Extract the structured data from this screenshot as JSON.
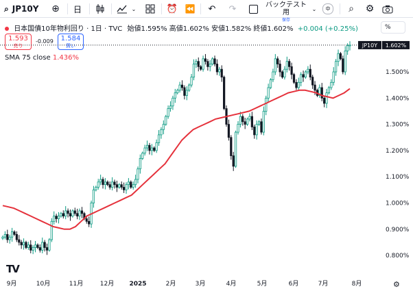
{
  "toolbar": {
    "symbol": "JP10Y",
    "add_icon": "plus-circle-icon",
    "interval": "日",
    "candle_icon": "candlestick-icon",
    "indicator_icon": "indicators-icon",
    "layout_icon": "grid-icon",
    "alert_icon": "alarm-icon",
    "replay_icon": "rewind-icon",
    "undo_icon": "undo-icon",
    "redo_icon": "redo-icon",
    "backtest_label": "バックテスト用",
    "backtest_sub": "保存",
    "mid_label": "中",
    "search_icon": "search-icon",
    "settings_icon": "gear-icon",
    "camera_icon": "camera-icon"
  },
  "legend": {
    "title": "日本国債10年物利回り · 1日 · TVC",
    "ohlc": "始値1.595% 高値1.602% 安値1.582% 終値1.602%",
    "change": "+0.004 (+0.25%)"
  },
  "pct_button": "%",
  "trade": {
    "sell_price": "1.593",
    "sell_label": "売り",
    "spread": "-0.009",
    "buy_price": "1.584",
    "buy_label": "買い"
  },
  "sma": {
    "label": "SMA 75 close",
    "value": "1.436%"
  },
  "chart_data": {
    "type": "candlestick",
    "y_axis_ticks": [
      "1.500%",
      "1.400%",
      "1.300%",
      "1.200%",
      "1.100%",
      "1.000%",
      "0.900%",
      "0.800%"
    ],
    "x_axis_ticks": [
      "9月",
      "10月",
      "11月",
      "12月",
      "2025",
      "2月",
      "3月",
      "4月",
      "5月",
      "6月",
      "7月",
      "8月"
    ],
    "ylim": [
      0.775,
      1.66
    ],
    "last_price_label": "JP10Y",
    "last_price": "1.602%",
    "colors": {
      "up": "#089981",
      "down": "#131722",
      "sma": "#e5313b"
    },
    "close_series": [
      0.87,
      0.88,
      0.86,
      0.87,
      0.89,
      0.88,
      0.86,
      0.85,
      0.84,
      0.85,
      0.83,
      0.84,
      0.82,
      0.83,
      0.84,
      0.83,
      0.82,
      0.85,
      0.83,
      0.82,
      0.86,
      0.93,
      0.95,
      0.94,
      0.95,
      0.96,
      0.95,
      0.97,
      0.96,
      0.95,
      0.97,
      0.96,
      0.95,
      0.97,
      0.96,
      0.94,
      0.93,
      0.92,
      1.0,
      1.05,
      1.06,
      1.08,
      1.09,
      1.07,
      1.08,
      1.07,
      1.06,
      1.08,
      1.07,
      1.06,
      1.07,
      1.06,
      1.05,
      1.07,
      1.08,
      1.06,
      1.07,
      1.09,
      1.13,
      1.17,
      1.19,
      1.21,
      1.22,
      1.2,
      1.21,
      1.2,
      1.23,
      1.26,
      1.28,
      1.3,
      1.33,
      1.36,
      1.37,
      1.4,
      1.42,
      1.43,
      1.45,
      1.44,
      1.41,
      1.43,
      1.45,
      1.48,
      1.53,
      1.54,
      1.52,
      1.51,
      1.55,
      1.54,
      1.52,
      1.53,
      1.55,
      1.53,
      1.5,
      1.51,
      1.48,
      1.36,
      1.3,
      1.25,
      1.18,
      1.14,
      1.27,
      1.3,
      1.33,
      1.31,
      1.3,
      1.32,
      1.33,
      1.29,
      1.26,
      1.3,
      1.31,
      1.27,
      1.35,
      1.4,
      1.44,
      1.47,
      1.5,
      1.55,
      1.53,
      1.5,
      1.48,
      1.51,
      1.54,
      1.52,
      1.49,
      1.46,
      1.44,
      1.46,
      1.49,
      1.48,
      1.5,
      1.51,
      1.48,
      1.45,
      1.43,
      1.41,
      1.44,
      1.4,
      1.38,
      1.42,
      1.44,
      1.46,
      1.5,
      1.54,
      1.57,
      1.55,
      1.5,
      1.58,
      1.6,
      1.602
    ],
    "sma_series": [
      0.99,
      0.985,
      0.98,
      0.97,
      0.96,
      0.95,
      0.94,
      0.93,
      0.92,
      0.91,
      0.905,
      0.9,
      0.9,
      0.91,
      0.93,
      0.95,
      0.96,
      0.97,
      0.98,
      0.99,
      1.0,
      1.01,
      1.02,
      1.03,
      1.05,
      1.07,
      1.09,
      1.11,
      1.13,
      1.15,
      1.18,
      1.21,
      1.24,
      1.26,
      1.28,
      1.29,
      1.3,
      1.31,
      1.32,
      1.325,
      1.33,
      1.335,
      1.34,
      1.345,
      1.35,
      1.36,
      1.37,
      1.38,
      1.39,
      1.4,
      1.41,
      1.42,
      1.425,
      1.43,
      1.43,
      1.425,
      1.42,
      1.41,
      1.405,
      1.4,
      1.41,
      1.42,
      1.436
    ]
  }
}
